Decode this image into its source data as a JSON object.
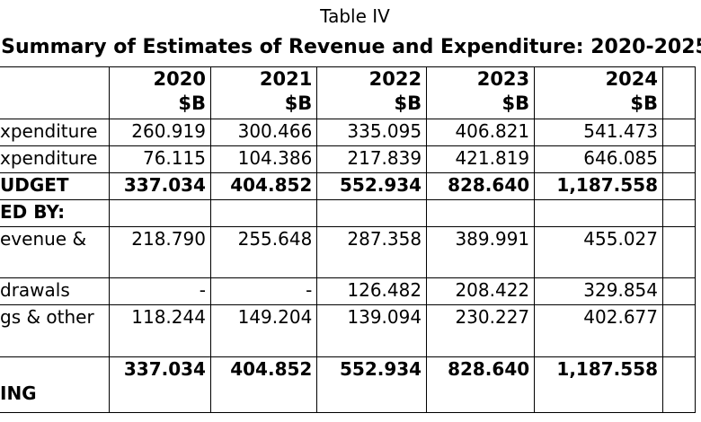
{
  "table": {
    "label": "Table IV",
    "title": "Summary of Estimates of Revenue and Expenditure: 2020-2025",
    "columns": [
      {
        "year": "2020",
        "unit": "$B"
      },
      {
        "year": "2021",
        "unit": "$B"
      },
      {
        "year": "2022",
        "unit": "$B"
      },
      {
        "year": "2023",
        "unit": "$B"
      },
      {
        "year": "2024",
        "unit": "$B"
      }
    ],
    "rows": [
      {
        "label_lines": [
          "xpenditure"
        ],
        "values": [
          "260.919",
          "300.466",
          "335.095",
          "406.821",
          "541.473"
        ]
      },
      {
        "label_lines": [
          "xpenditure"
        ],
        "values": [
          "76.115",
          "104.386",
          "217.839",
          "421.819",
          "646.085"
        ]
      },
      {
        "label_lines": [
          "UDGET"
        ],
        "values": [
          "337.034",
          "404.852",
          "552.934",
          "828.640",
          "1,187.558"
        ]
      },
      {
        "label_lines": [
          "ED BY:"
        ],
        "values": [
          "",
          "",
          "",
          "",
          ""
        ]
      },
      {
        "label_lines": [
          "evenue  &",
          ""
        ],
        "values": [
          "218.790",
          "255.648",
          "287.358",
          "389.991",
          "455.027"
        ]
      },
      {
        "label_lines": [
          "drawals"
        ],
        "values": [
          "-",
          "-",
          "126.482",
          "208.422",
          "329.854"
        ]
      },
      {
        "label_lines": [
          "gs  &  other",
          ""
        ],
        "values": [
          "118.244",
          "149.204",
          "139.094",
          "230.227",
          "402.677"
        ]
      },
      {
        "label_lines": [
          "",
          "ING"
        ],
        "values": [
          "337.034",
          "404.852",
          "552.934",
          "828.640",
          "1,187.558"
        ]
      }
    ]
  }
}
